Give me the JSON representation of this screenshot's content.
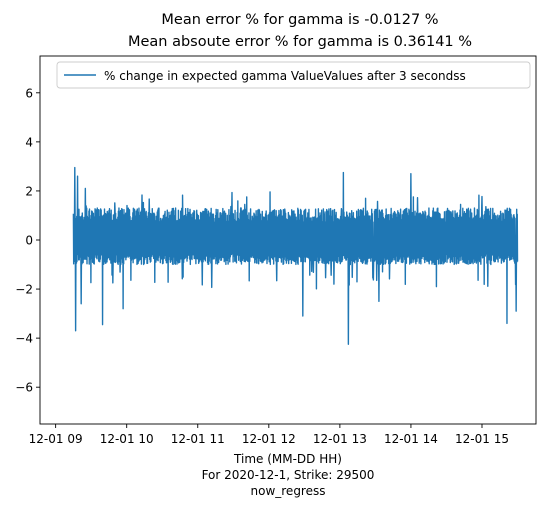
{
  "chart_data": {
    "type": "line",
    "title_lines": [
      "Mean error % for gamma is -0.0127 %",
      "Mean absoute error % for gamma is 0.36141 %"
    ],
    "xlabel_lines": [
      "Time (MM-DD HH)",
      "For 2020-12-1, Strike: 29500",
      "now_regress"
    ],
    "ylabel": "",
    "x_ticks": [
      "12-01 09",
      "12-01 10",
      "12-01 11",
      "12-01 12",
      "12-01 13",
      "12-01 14",
      "12-01 15"
    ],
    "x_tick_hours": [
      9,
      10,
      11,
      12,
      13,
      14,
      15
    ],
    "xlim_hours": [
      8.78,
      15.76
    ],
    "x_data_range_hours": [
      9.25,
      15.5
    ],
    "y_ticks": [
      -6,
      -4,
      -2,
      0,
      2,
      4,
      6
    ],
    "ylim": [
      -7.5,
      7.5
    ],
    "grid": false,
    "legend_position": "top-right",
    "series": [
      {
        "name": "% change in expected gamma ValueValues after 3 secondss",
        "color": "#1f77b4",
        "typical_band": [
          -1.0,
          1.3
        ],
        "spikes": [
          {
            "x": 9.27,
            "y": 2.95
          },
          {
            "x": 9.28,
            "y": -3.7
          },
          {
            "x": 9.31,
            "y": 2.6
          },
          {
            "x": 9.36,
            "y": -2.6
          },
          {
            "x": 9.42,
            "y": 2.1
          },
          {
            "x": 9.66,
            "y": -3.45
          },
          {
            "x": 9.95,
            "y": -2.8
          },
          {
            "x": 12.48,
            "y": -3.1
          },
          {
            "x": 13.05,
            "y": 2.75
          },
          {
            "x": 13.12,
            "y": -4.25
          },
          {
            "x": 13.55,
            "y": -2.5
          },
          {
            "x": 14.0,
            "y": 2.7
          },
          {
            "x": 15.35,
            "y": -3.4
          },
          {
            "x": 15.48,
            "y": -2.9
          }
        ]
      }
    ]
  }
}
